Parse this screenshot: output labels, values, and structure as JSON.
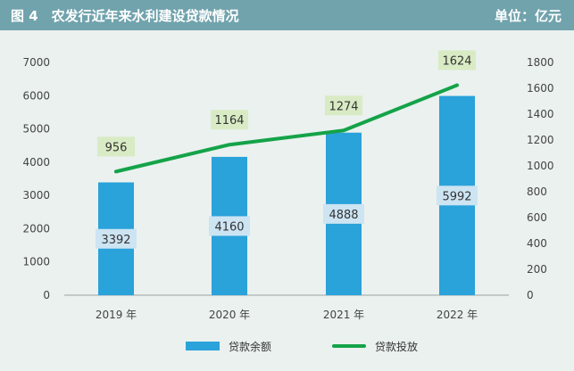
{
  "header": {
    "title": "图 4　农发行近年来水利建设贷款情况",
    "unit": "单位：亿元"
  },
  "colors": {
    "bar": "#2aa2da",
    "line": "#14a348",
    "bar_label_bg": "#cde4f2",
    "line_label_bg": "#d9ebc4"
  },
  "legend": {
    "bar_label": "贷款余额",
    "line_label": "贷款投放"
  },
  "chart_data": {
    "type": "bar",
    "categories": [
      "2019 年",
      "2020 年",
      "2021 年",
      "2022 年"
    ],
    "series": [
      {
        "name": "贷款余额",
        "type": "bar",
        "axis": "left",
        "values": [
          3392,
          4160,
          4888,
          5992
        ]
      },
      {
        "name": "贷款投放",
        "type": "line",
        "axis": "right",
        "values": [
          956,
          1164,
          1274,
          1624
        ]
      }
    ],
    "y_left": {
      "min": 0,
      "max": 7000,
      "ticks": [
        0,
        1000,
        2000,
        3000,
        4000,
        5000,
        6000,
        7000
      ]
    },
    "y_right": {
      "min": 0,
      "max": 1800,
      "ticks": [
        0,
        200,
        400,
        600,
        800,
        1000,
        1200,
        1400,
        1600,
        1800
      ]
    },
    "grid": false,
    "legend_position": "bottom"
  }
}
